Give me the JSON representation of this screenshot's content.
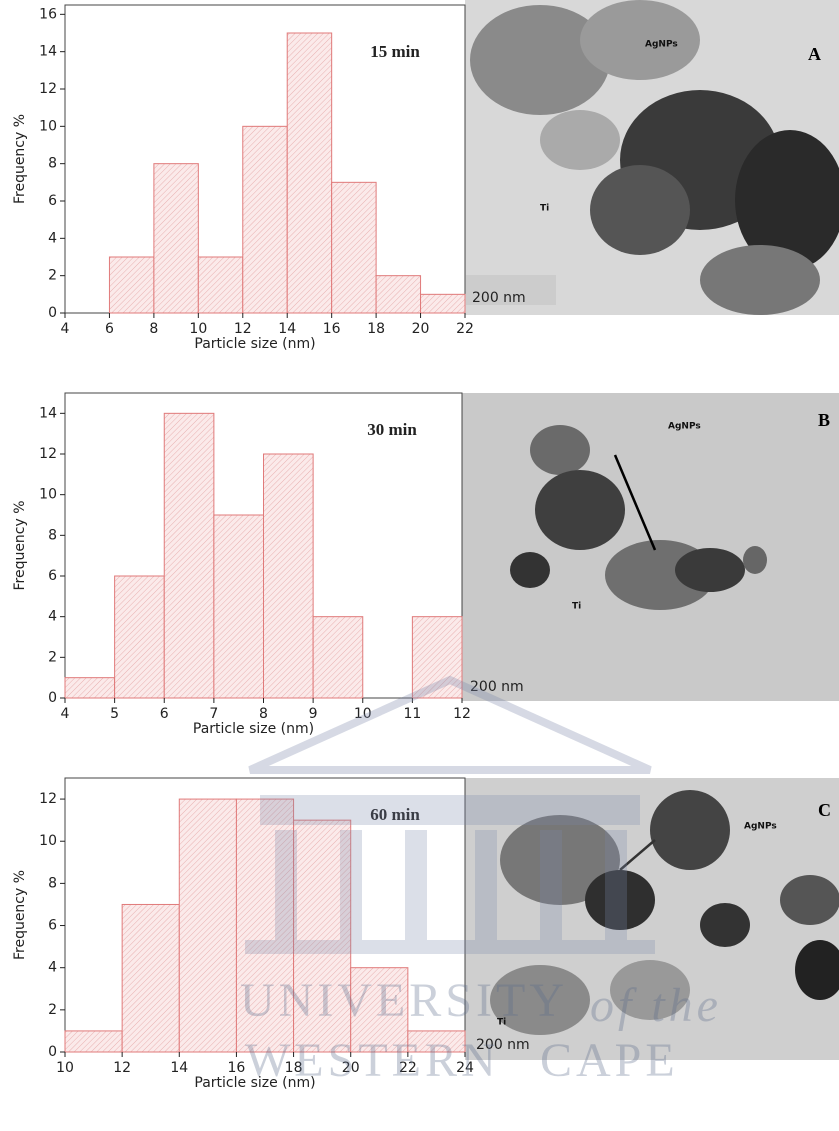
{
  "chart_data": [
    {
      "type": "histogram",
      "title": "15 min",
      "x_label": "Particle size (nm)",
      "y_label": "Frequency %",
      "bins": [
        6,
        8,
        10,
        12,
        14,
        16,
        18,
        20,
        22
      ],
      "values": [
        3,
        8,
        3,
        10,
        15,
        7,
        2,
        1
      ],
      "color": "#e07a7a",
      "xlim": [
        4,
        22
      ],
      "ylim": [
        0,
        16.5
      ],
      "xticks": [
        4,
        6,
        8,
        10,
        12,
        14,
        16,
        18,
        20,
        22
      ],
      "yticks": [
        0,
        2,
        4,
        6,
        8,
        10,
        12,
        14,
        16
      ]
    },
    {
      "type": "histogram",
      "title": "30 min",
      "x_label": "Particle size (nm)",
      "y_label": "Frequency %",
      "bins": [
        4,
        5,
        6,
        7,
        8,
        9,
        10,
        11,
        12
      ],
      "values": [
        1,
        6,
        14,
        9,
        12,
        4,
        0,
        4
      ],
      "color": "#e07a7a",
      "xlim": [
        4,
        12
      ],
      "ylim": [
        0,
        15
      ],
      "xticks": [
        4,
        5,
        6,
        7,
        8,
        9,
        10,
        11,
        12
      ],
      "yticks": [
        0,
        2,
        4,
        6,
        8,
        10,
        12,
        14
      ]
    },
    {
      "type": "histogram",
      "title": "60 min",
      "x_label": "Particle size (nm)",
      "y_label": "Frequency %",
      "bins": [
        10,
        12,
        14,
        16,
        18,
        20,
        22,
        24
      ],
      "values": [
        1,
        7,
        12,
        12,
        11,
        4,
        1
      ],
      "color": "#e07a7a",
      "xlim": [
        10,
        24
      ],
      "ylim": [
        0,
        13
      ],
      "xticks": [
        10,
        12,
        14,
        16,
        18,
        20,
        22,
        24
      ],
      "yticks": [
        0,
        2,
        4,
        6,
        8,
        10,
        12
      ]
    }
  ],
  "images": [
    {
      "panel": "A",
      "labels": [
        "AgNPs",
        "Ti"
      ],
      "scale_bar": "200 nm"
    },
    {
      "panel": "B",
      "labels": [
        "AgNPs",
        "Ti"
      ],
      "scale_bar": "200 nm"
    },
    {
      "panel": "C",
      "labels": [
        "AgNPs",
        "Ti"
      ],
      "scale_bar": "200 nm"
    }
  ],
  "watermark": [
    "UNIVERSITY",
    "of the",
    "WESTERN",
    "CAPE"
  ]
}
